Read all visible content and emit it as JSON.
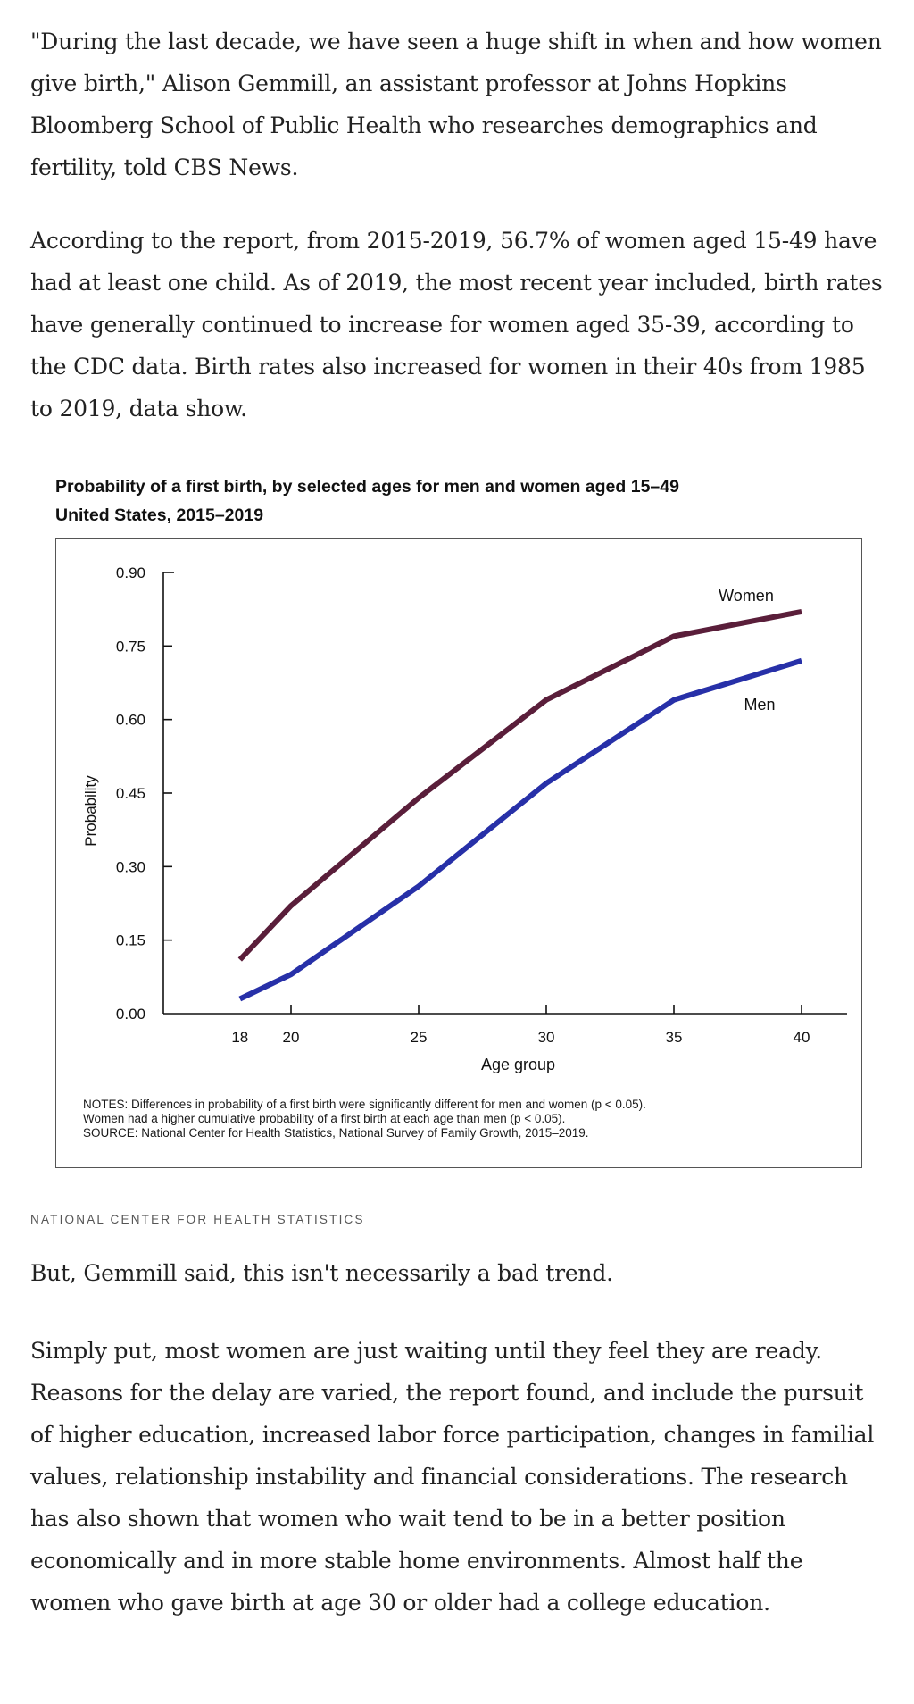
{
  "article": {
    "paragraphs": [
      "\"During the last decade, we have seen a huge shift in when and how women give birth,\" Alison Gemmill, an assistant professor at Johns Hopkins Bloomberg School of Public Health who researches demographics and fertility, told CBS News.",
      "According to the report, from 2015-2019, 56.7% of women aged 15-49 have had at least one child. As of 2019, the most recent year included, birth rates have generally continued to increase for women aged 35-39, according to the CDC data. Birth rates also increased for women in their 40s from 1985 to 2019, data show.",
      "But, Gemmill said, this isn't necessarily a bad trend.",
      "Simply put, most women are just waiting until they feel they are ready. Reasons for the delay are varied, the report found, and include the pursuit of higher education, increased labor force participation, changes in familial values, relationship instability and financial considerations. The research has also shown that women who wait tend to be in a better position economically and in more stable home environments. Almost half the women who gave birth at age 30 or older had a college education."
    ]
  },
  "figure": {
    "credit": "NATIONAL CENTER FOR HEALTH STATISTICS",
    "notes": [
      "NOTES: Differences in probability of a first birth were significantly different for men and women (p < 0.05).",
      "Women had a higher cumulative probability of a first birth at each age than men (p < 0.05).",
      "SOURCE: National Center for Health Statistics, National Survey of Family Growth, 2015–2019."
    ]
  },
  "chart_data": {
    "type": "line",
    "title": "Probability of a first birth, by selected ages for men and women aged 15–49",
    "subtitle": "United States, 2015–2019",
    "xlabel": "Age group",
    "ylabel": "Probability",
    "x": [
      18,
      20,
      25,
      30,
      35,
      40
    ],
    "x_ticks": [
      "18",
      "20",
      "25",
      "30",
      "35",
      "40"
    ],
    "y_ticks": [
      "0.00",
      "0.15",
      "0.30",
      "0.45",
      "0.60",
      "0.75",
      "0.90"
    ],
    "ylim": [
      0,
      0.9
    ],
    "grid": false,
    "legend": "inline labels near line ends",
    "series": [
      {
        "name": "Women",
        "color": "#5a1e3a",
        "values": [
          0.11,
          0.22,
          0.44,
          0.64,
          0.77,
          0.82
        ]
      },
      {
        "name": "Men",
        "color": "#2730a8",
        "values": [
          0.03,
          0.08,
          0.26,
          0.47,
          0.64,
          0.72
        ]
      }
    ]
  }
}
